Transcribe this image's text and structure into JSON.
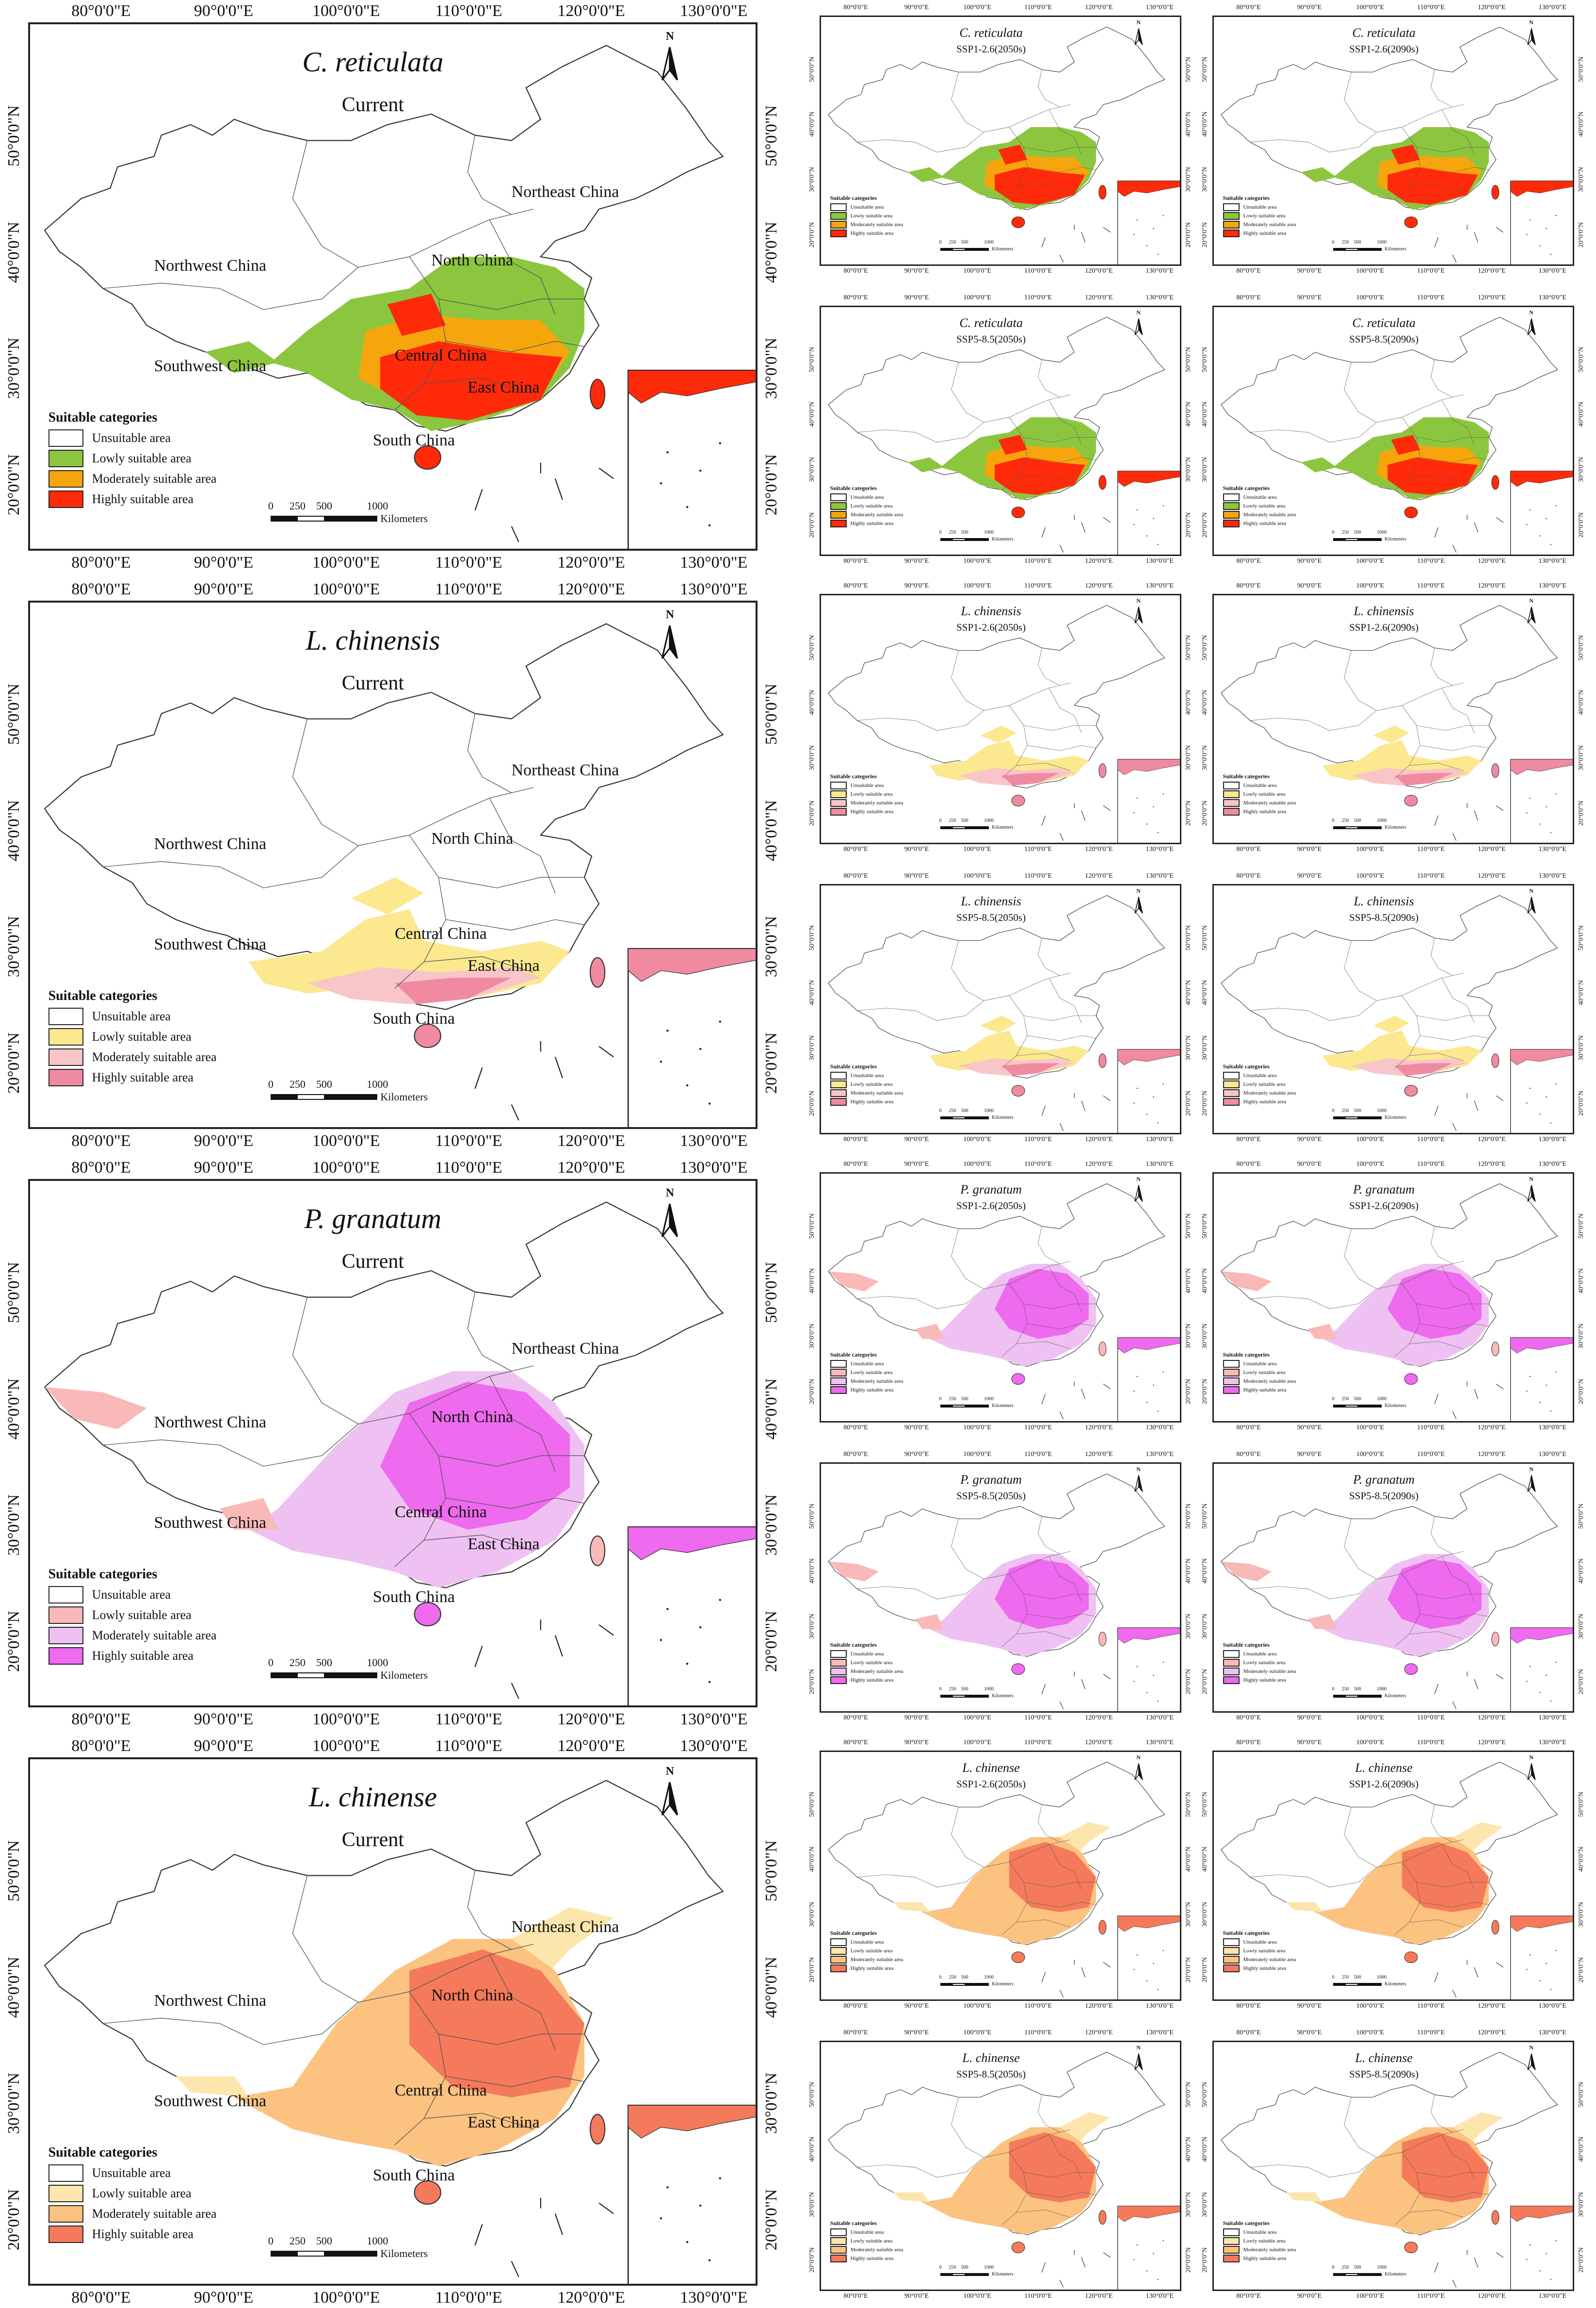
{
  "figure": {
    "longitude_labels": [
      "80°0'0\"E",
      "90°0'0\"E",
      "100°0'0\"E",
      "110°0'0\"E",
      "120°0'0\"E",
      "130°0'0\"E"
    ],
    "latitude_labels": [
      "50°0'0\"N",
      "40°0'0\"N",
      "30°0'0\"N",
      "20°0'0\"N"
    ],
    "legend_title": "Suitable categories",
    "legend_labels": [
      "Unsuitable area",
      "Lowly suitable area",
      "Moderately suitable area",
      "Highly suitable area"
    ],
    "scalebar_ticks": [
      "0",
      "250",
      "500",
      "1000"
    ],
    "scalebar_unit": "Kilometers",
    "north_label": "N",
    "regions": [
      "Northeast China",
      "North China",
      "Northwest China",
      "Central China",
      "Southwest China",
      "East China",
      "South China"
    ],
    "current_label": "Current",
    "scenarios": [
      "SSP1-2.6(2050s)",
      "SSP1-2.6(2090s)",
      "SSP5-8.5(2050s)",
      "SSP5-8.5(2090s)"
    ]
  },
  "species": [
    {
      "name": "C. reticulata",
      "colors": {
        "unsuitable": "#ffffff",
        "low": "#8cc63f",
        "moderate": "#f7a50c",
        "high": "#ff2a0a"
      }
    },
    {
      "name": "L. chinensis",
      "colors": {
        "unsuitable": "#ffffff",
        "low": "#fbe88f",
        "moderate": "#f8c5c8",
        "high": "#f08aa0"
      }
    },
    {
      "name": "P. granatum",
      "colors": {
        "unsuitable": "#ffffff",
        "low": "#f8b9b8",
        "moderate": "#efc1f2",
        "high": "#ee6aee"
      }
    },
    {
      "name": "L. chinense",
      "colors": {
        "unsuitable": "#ffffff",
        "low": "#fde6ad",
        "moderate": "#fbc280",
        "high": "#f57a5b"
      }
    }
  ]
}
